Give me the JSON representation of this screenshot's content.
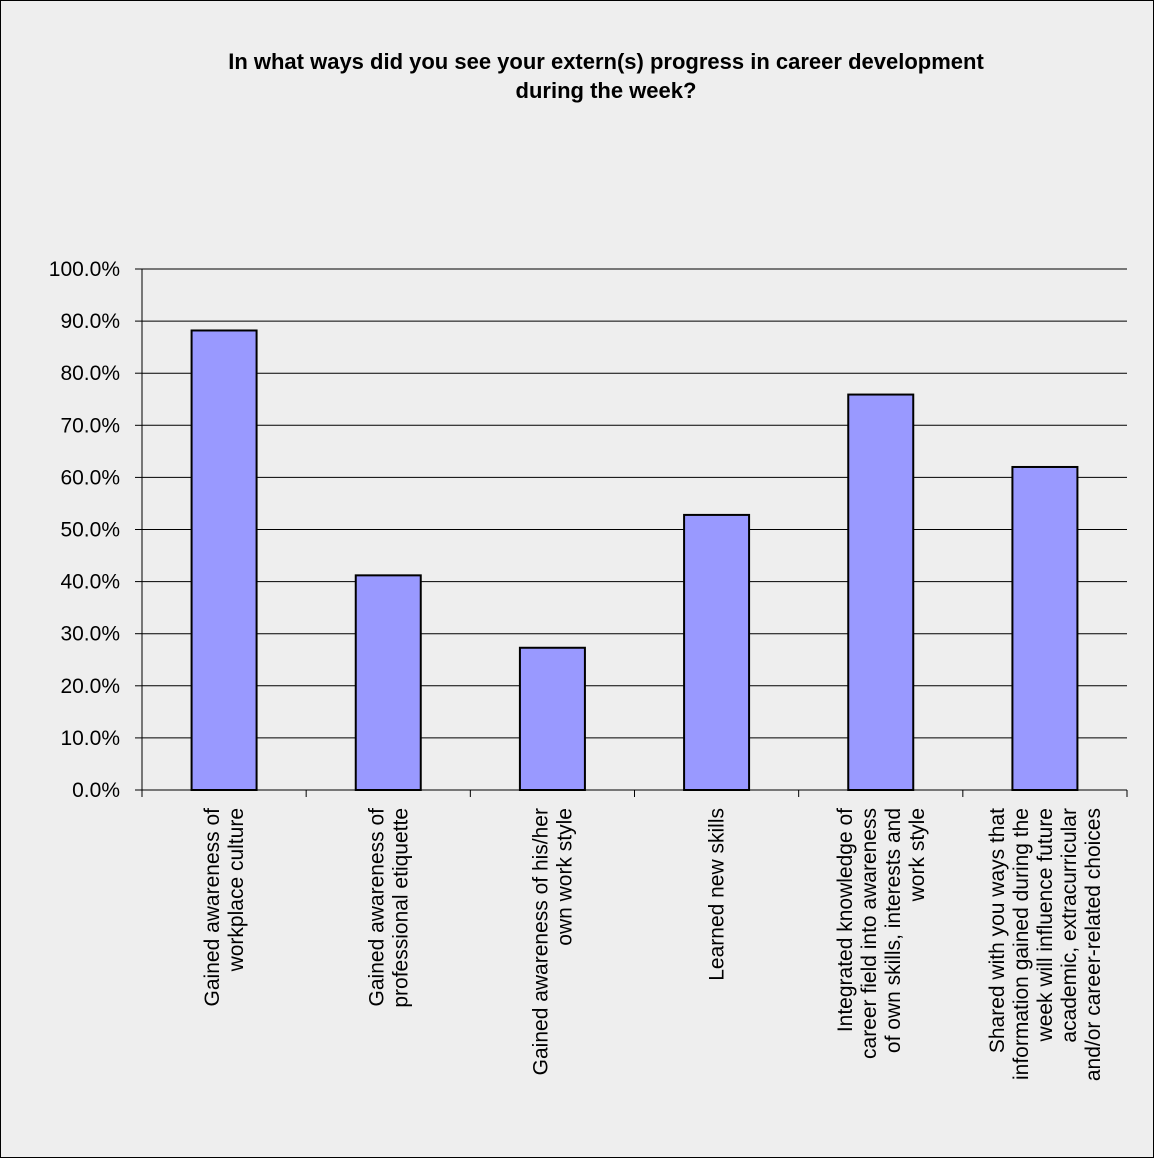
{
  "chart_data": {
    "type": "bar",
    "title": [
      "In what ways did you see your extern(s) progress in career development",
      "during the week?"
    ],
    "xlabel": "",
    "ylabel": "",
    "ylim": [
      0,
      100
    ],
    "y_tick_step": 10,
    "y_ticks": [
      "0.0%",
      "10.0%",
      "20.0%",
      "30.0%",
      "40.0%",
      "50.0%",
      "60.0%",
      "70.0%",
      "80.0%",
      "90.0%",
      "100.0%"
    ],
    "grid": true,
    "legend": "none",
    "categories": [
      [
        "Gained awareness of",
        "workplace culture"
      ],
      [
        "Gained awareness of",
        "professional etiquette"
      ],
      [
        "Gained awareness of his/her",
        "own work style"
      ],
      [
        "Learned new skills"
      ],
      [
        "Integrated knowledge of",
        "career field into awareness",
        "of own skills, interests and",
        "work style"
      ],
      [
        "Shared with you ways that",
        "information gained during the",
        "week will influence future",
        "academic, extracurricular",
        "and/or career-related choices"
      ]
    ],
    "values": [
      88.2,
      41.2,
      27.3,
      52.8,
      75.9,
      62.0
    ],
    "colors": {
      "bar_fill": "#9999ff",
      "bar_stroke": "#000000",
      "background": "#eeeeee",
      "grid": "#000000"
    }
  }
}
